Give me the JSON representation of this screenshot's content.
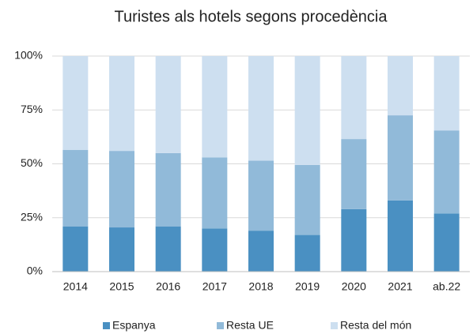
{
  "chart_data": {
    "type": "stacked_bar",
    "title": "Turistes als hotels segons procedència",
    "categories": [
      "2014",
      "2015",
      "2016",
      "2017",
      "2018",
      "2019",
      "2020",
      "2021",
      "ab.22"
    ],
    "series": [
      {
        "name": "Espanya",
        "color": "#4a90c2",
        "values": [
          21,
          20.5,
          21,
          20,
          19,
          17,
          29,
          33,
          27
        ]
      },
      {
        "name": "Resta UE",
        "color": "#91bad9",
        "values": [
          35.5,
          35.5,
          34,
          33,
          32.5,
          32.5,
          32.5,
          39.5,
          38.5
        ]
      },
      {
        "name": "Resta del món",
        "color": "#cddff0",
        "values": [
          43.5,
          44,
          45,
          47,
          48.5,
          50.5,
          38.5,
          27.5,
          34.5
        ]
      }
    ],
    "ylim": [
      0,
      100
    ],
    "yticks": [
      {
        "value": 0,
        "label": "0%"
      },
      {
        "value": 25,
        "label": "25%"
      },
      {
        "value": 50,
        "label": "50%"
      },
      {
        "value": 75,
        "label": "75%"
      },
      {
        "value": 100,
        "label": "100%"
      }
    ],
    "grid": true,
    "legend": "bottom"
  }
}
